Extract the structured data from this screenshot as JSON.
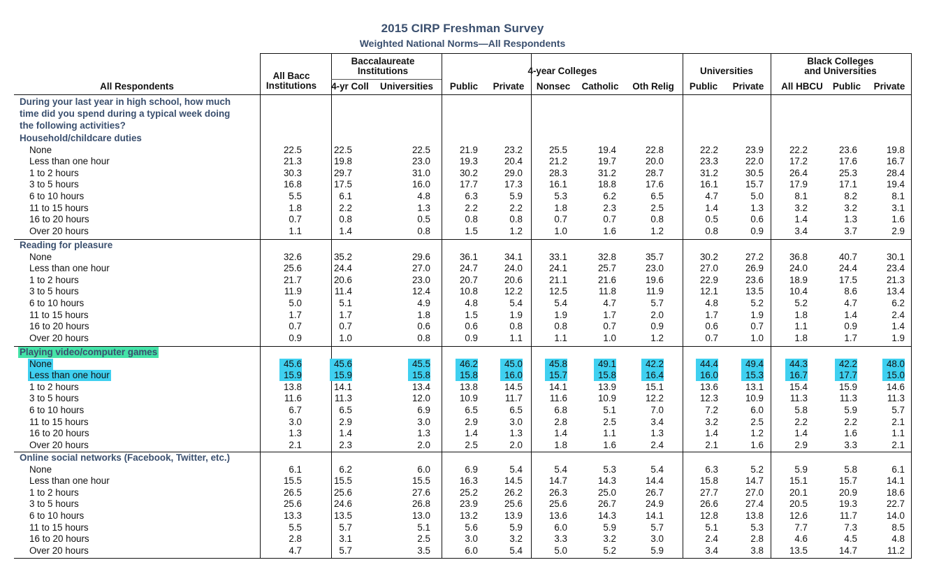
{
  "title": "2015 CIRP Freshman Survey",
  "subtitle": "Weighted National Norms—All Respondents",
  "header": {
    "row_label": "All Respondents",
    "groups": [
      {
        "label_lines": [
          "All Bacc",
          "Institutions"
        ]
      },
      {
        "label_lines": [
          "Baccalaureate",
          "Institutions"
        ]
      },
      {
        "label_lines": [
          "4-year Colleges"
        ]
      },
      {
        "label_lines": [
          "Universities"
        ]
      },
      {
        "label_lines": [
          "Black Colleges",
          "and Universities"
        ]
      }
    ],
    "columns": [
      "",
      "4-yr Coll",
      "Universities",
      "Public",
      "Private",
      "Nonsec",
      "Catholic",
      "Oth Relig",
      "Public",
      "Private",
      "All HBCU",
      "Public",
      "Private"
    ]
  },
  "question": [
    "During your last year in high school, how much",
    "time did you spend during a typical week doing",
    "the following activities?"
  ],
  "sections": [
    {
      "title": "Household/childcare duties",
      "rows": [
        {
          "label": "None",
          "values": [
            "22.5",
            "22.5",
            "22.5",
            "21.9",
            "23.2",
            "25.5",
            "19.4",
            "22.8",
            "22.2",
            "23.9",
            "22.2",
            "23.6",
            "19.8"
          ]
        },
        {
          "label": "Less than one hour",
          "values": [
            "21.3",
            "19.8",
            "23.0",
            "19.3",
            "20.4",
            "21.2",
            "19.7",
            "20.0",
            "23.3",
            "22.0",
            "17.2",
            "17.6",
            "16.7"
          ]
        },
        {
          "label": "1 to 2 hours",
          "values": [
            "30.3",
            "29.7",
            "31.0",
            "30.2",
            "29.0",
            "28.3",
            "31.2",
            "28.7",
            "31.2",
            "30.5",
            "26.4",
            "25.3",
            "28.4"
          ]
        },
        {
          "label": "3 to 5 hours",
          "values": [
            "16.8",
            "17.5",
            "16.0",
            "17.7",
            "17.3",
            "16.1",
            "18.8",
            "17.6",
            "16.1",
            "15.7",
            "17.9",
            "17.1",
            "19.4"
          ]
        },
        {
          "label": "6 to 10 hours",
          "values": [
            "5.5",
            "6.1",
            "4.8",
            "6.3",
            "5.9",
            "5.3",
            "6.2",
            "6.5",
            "4.7",
            "5.0",
            "8.1",
            "8.2",
            "8.1"
          ]
        },
        {
          "label": "11 to 15 hours",
          "values": [
            "1.8",
            "2.2",
            "1.3",
            "2.2",
            "2.2",
            "1.8",
            "2.3",
            "2.5",
            "1.4",
            "1.3",
            "3.2",
            "3.2",
            "3.1"
          ]
        },
        {
          "label": "16 to 20 hours",
          "values": [
            "0.7",
            "0.8",
            "0.5",
            "0.8",
            "0.8",
            "0.7",
            "0.7",
            "0.8",
            "0.5",
            "0.6",
            "1.4",
            "1.3",
            "1.6"
          ]
        },
        {
          "label": "Over 20 hours",
          "values": [
            "1.1",
            "1.4",
            "0.8",
            "1.5",
            "1.2",
            "1.0",
            "1.6",
            "1.2",
            "0.8",
            "0.9",
            "3.4",
            "3.7",
            "2.9"
          ]
        }
      ]
    },
    {
      "title": "Reading for pleasure",
      "rows": [
        {
          "label": "None",
          "values": [
            "32.6",
            "35.2",
            "29.6",
            "36.1",
            "34.1",
            "33.1",
            "32.8",
            "35.7",
            "30.2",
            "27.2",
            "36.8",
            "40.7",
            "30.1"
          ]
        },
        {
          "label": "Less than one hour",
          "values": [
            "25.6",
            "24.4",
            "27.0",
            "24.7",
            "24.0",
            "24.1",
            "25.7",
            "23.0",
            "27.0",
            "26.9",
            "24.0",
            "24.4",
            "23.4"
          ]
        },
        {
          "label": "1 to 2 hours",
          "values": [
            "21.7",
            "20.6",
            "23.0",
            "20.7",
            "20.6",
            "21.1",
            "21.6",
            "19.6",
            "22.9",
            "23.6",
            "18.9",
            "17.5",
            "21.3"
          ]
        },
        {
          "label": "3 to 5 hours",
          "values": [
            "11.9",
            "11.4",
            "12.4",
            "10.8",
            "12.2",
            "12.5",
            "11.8",
            "11.9",
            "12.1",
            "13.5",
            "10.4",
            "8.6",
            "13.4"
          ]
        },
        {
          "label": "6 to 10 hours",
          "values": [
            "5.0",
            "5.1",
            "4.9",
            "4.8",
            "5.4",
            "5.4",
            "4.7",
            "5.7",
            "4.8",
            "5.2",
            "5.2",
            "4.7",
            "6.2"
          ]
        },
        {
          "label": "11 to 15 hours",
          "values": [
            "1.7",
            "1.7",
            "1.8",
            "1.5",
            "1.9",
            "1.9",
            "1.7",
            "2.0",
            "1.7",
            "1.9",
            "1.8",
            "1.4",
            "2.4"
          ]
        },
        {
          "label": "16 to 20 hours",
          "values": [
            "0.7",
            "0.7",
            "0.6",
            "0.6",
            "0.8",
            "0.8",
            "0.7",
            "0.9",
            "0.6",
            "0.7",
            "1.1",
            "0.9",
            "1.4"
          ]
        },
        {
          "label": "Over 20 hours",
          "values": [
            "0.9",
            "1.0",
            "0.8",
            "0.9",
            "1.1",
            "1.1",
            "1.0",
            "1.2",
            "0.7",
            "1.0",
            "1.8",
            "1.7",
            "1.9"
          ]
        }
      ]
    },
    {
      "title": "Playing video/computer games",
      "highlight_title": true,
      "rows": [
        {
          "label": "None",
          "highlight": true,
          "values": [
            "45.6",
            "45.6",
            "45.5",
            "46.2",
            "45.0",
            "45.8",
            "49.1",
            "42.2",
            "44.4",
            "49.4",
            "44.3",
            "42.2",
            "48.0"
          ]
        },
        {
          "label": "Less than one hour",
          "highlight": true,
          "values": [
            "15.9",
            "15.9",
            "15.8",
            "15.8",
            "16.0",
            "15.7",
            "15.8",
            "16.4",
            "16.0",
            "15.3",
            "16.7",
            "17.7",
            "15.0"
          ]
        },
        {
          "label": "1 to 2 hours",
          "values": [
            "13.8",
            "14.1",
            "13.4",
            "13.8",
            "14.5",
            "14.1",
            "13.9",
            "15.1",
            "13.6",
            "13.1",
            "15.4",
            "15.9",
            "14.6"
          ]
        },
        {
          "label": "3 to 5 hours",
          "values": [
            "11.6",
            "11.3",
            "12.0",
            "10.9",
            "11.7",
            "11.6",
            "10.9",
            "12.2",
            "12.3",
            "10.9",
            "11.3",
            "11.3",
            "11.3"
          ]
        },
        {
          "label": "6 to 10 hours",
          "values": [
            "6.7",
            "6.5",
            "6.9",
            "6.5",
            "6.5",
            "6.8",
            "5.1",
            "7.0",
            "7.2",
            "6.0",
            "5.8",
            "5.9",
            "5.7"
          ]
        },
        {
          "label": "11 to 15 hours",
          "values": [
            "3.0",
            "2.9",
            "3.0",
            "2.9",
            "3.0",
            "2.8",
            "2.5",
            "3.4",
            "3.2",
            "2.5",
            "2.2",
            "2.2",
            "2.1"
          ]
        },
        {
          "label": "16 to 20 hours",
          "values": [
            "1.3",
            "1.4",
            "1.3",
            "1.4",
            "1.3",
            "1.4",
            "1.1",
            "1.3",
            "1.4",
            "1.2",
            "1.4",
            "1.6",
            "1.1"
          ]
        },
        {
          "label": "Over 20 hours",
          "values": [
            "2.1",
            "2.3",
            "2.0",
            "2.5",
            "2.0",
            "1.8",
            "1.6",
            "2.4",
            "2.1",
            "1.6",
            "2.9",
            "3.3",
            "2.1"
          ]
        }
      ]
    },
    {
      "title": "Online social networks (Facebook, Twitter, etc.)",
      "rows": [
        {
          "label": "None",
          "values": [
            "6.1",
            "6.2",
            "6.0",
            "6.9",
            "5.4",
            "5.4",
            "5.3",
            "5.4",
            "6.3",
            "5.2",
            "5.9",
            "5.8",
            "6.1"
          ]
        },
        {
          "label": "Less than one hour",
          "values": [
            "15.5",
            "15.5",
            "15.5",
            "16.3",
            "14.5",
            "14.7",
            "14.3",
            "14.4",
            "15.8",
            "14.7",
            "15.1",
            "15.7",
            "14.1"
          ]
        },
        {
          "label": "1 to 2 hours",
          "values": [
            "26.5",
            "25.6",
            "27.6",
            "25.2",
            "26.2",
            "26.3",
            "25.0",
            "26.7",
            "27.7",
            "27.0",
            "20.1",
            "20.9",
            "18.6"
          ]
        },
        {
          "label": "3 to 5 hours",
          "values": [
            "25.6",
            "24.6",
            "26.8",
            "23.9",
            "25.6",
            "25.6",
            "26.7",
            "24.9",
            "26.6",
            "27.4",
            "20.5",
            "19.3",
            "22.7"
          ]
        },
        {
          "label": "6 to 10 hours",
          "values": [
            "13.3",
            "13.5",
            "13.0",
            "13.2",
            "13.9",
            "13.6",
            "14.3",
            "14.1",
            "12.8",
            "13.8",
            "12.6",
            "11.7",
            "14.0"
          ]
        },
        {
          "label": "11 to 15 hours",
          "values": [
            "5.5",
            "5.7",
            "5.1",
            "5.6",
            "5.9",
            "6.0",
            "5.9",
            "5.7",
            "5.1",
            "5.3",
            "7.7",
            "7.3",
            "8.5"
          ]
        },
        {
          "label": "16 to 20 hours",
          "values": [
            "2.8",
            "3.1",
            "2.5",
            "3.0",
            "3.2",
            "3.3",
            "3.2",
            "3.0",
            "2.4",
            "2.8",
            "4.6",
            "4.5",
            "4.8"
          ]
        },
        {
          "label": "Over 20 hours",
          "values": [
            "4.7",
            "5.7",
            "3.5",
            "6.0",
            "5.4",
            "5.0",
            "5.2",
            "5.9",
            "3.4",
            "3.8",
            "13.5",
            "14.7",
            "11.2"
          ]
        }
      ]
    }
  ]
}
